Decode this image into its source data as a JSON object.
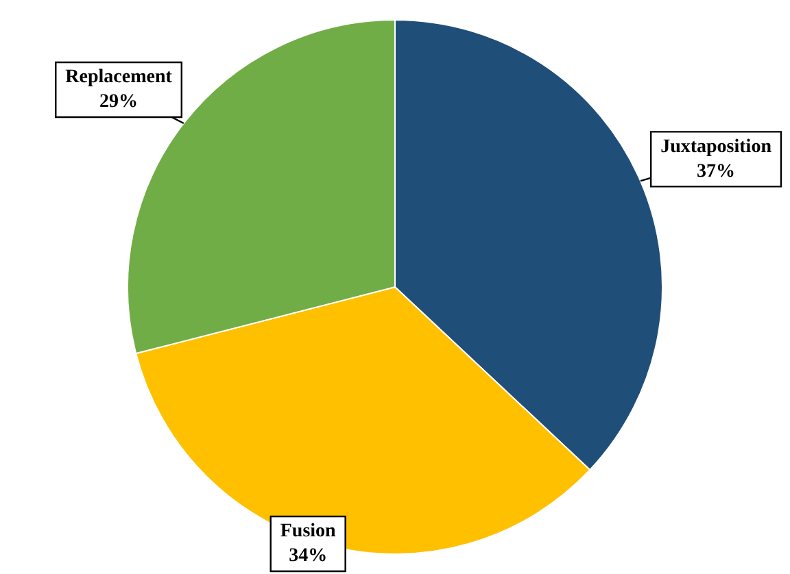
{
  "chart_data": {
    "type": "pie",
    "categories": [
      "Juxtaposition",
      "Fusion",
      "Replacement"
    ],
    "values": [
      37,
      34,
      29
    ],
    "colors": [
      "#1f4e79",
      "#ffc000",
      "#70ad47"
    ],
    "value_labels": [
      "37%",
      "34%",
      "29%"
    ],
    "legend": false
  }
}
